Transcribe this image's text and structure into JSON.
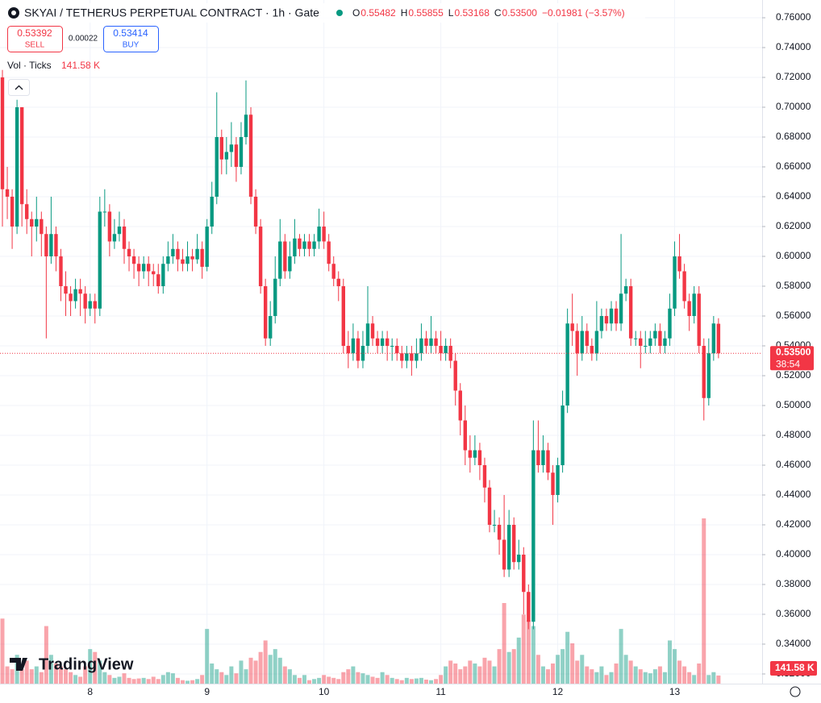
{
  "chart_data": {
    "type": "candlestick",
    "title": "SKYAI / TETHERUS PERPETUAL CONTRACT · 1h · Gate",
    "ohlc_legend": [
      {
        "key": "O",
        "value": "0.55482"
      },
      {
        "key": "H",
        "value": "0.55855"
      },
      {
        "key": "L",
        "value": "0.53168"
      },
      {
        "key": "C",
        "value": "0.53500"
      }
    ],
    "change": "−0.01981 (−3.57%)",
    "sell": {
      "price": "0.53392",
      "label": "SELL"
    },
    "spread": "0.00022",
    "buy": {
      "price": "0.53414",
      "label": "BUY"
    },
    "volume_legend": "Vol · Ticks",
    "volume_last_label": "141.58 K",
    "last_price_label": "0.53500",
    "countdown": "38:54",
    "watermark": "TradingView",
    "up_color": "#089981",
    "down_color": "#f23645",
    "grid": true,
    "ylim": [
      0.3135,
      0.7719
    ],
    "yticks": [
      {
        "value": 0.32,
        "label": "0.32000"
      },
      {
        "value": 0.34,
        "label": "0.34000"
      },
      {
        "value": 0.36,
        "label": "0.36000"
      },
      {
        "value": 0.38,
        "label": "0.38000"
      },
      {
        "value": 0.4,
        "label": "0.40000"
      },
      {
        "value": 0.42,
        "label": "0.42000"
      },
      {
        "value": 0.44,
        "label": "0.44000"
      },
      {
        "value": 0.46,
        "label": "0.46000"
      },
      {
        "value": 0.48,
        "label": "0.48000"
      },
      {
        "value": 0.5,
        "label": "0.50000"
      },
      {
        "value": 0.52,
        "label": "0.52000"
      },
      {
        "value": 0.54,
        "label": "0.54000"
      },
      {
        "value": 0.56,
        "label": "0.56000"
      },
      {
        "value": 0.58,
        "label": "0.58000"
      },
      {
        "value": 0.6,
        "label": "0.60000"
      },
      {
        "value": 0.62,
        "label": "0.62000"
      },
      {
        "value": 0.64,
        "label": "0.64000"
      },
      {
        "value": 0.66,
        "label": "0.66000"
      },
      {
        "value": 0.68,
        "label": "0.68000"
      },
      {
        "value": 0.7,
        "label": "0.70000"
      },
      {
        "value": 0.72,
        "label": "0.72000"
      },
      {
        "value": 0.74,
        "label": "0.74000"
      },
      {
        "value": 0.76,
        "label": "0.76000"
      }
    ],
    "categories": [
      null,
      null,
      null,
      null,
      null,
      null,
      null,
      null,
      null,
      null,
      null,
      null,
      null,
      null,
      null,
      null,
      null,
      null,
      "8",
      null,
      null,
      null,
      null,
      null,
      null,
      null,
      null,
      null,
      null,
      null,
      null,
      null,
      null,
      null,
      null,
      null,
      null,
      null,
      null,
      null,
      null,
      null,
      "9",
      null,
      null,
      null,
      null,
      null,
      null,
      null,
      null,
      null,
      null,
      null,
      null,
      null,
      null,
      null,
      null,
      null,
      null,
      null,
      null,
      null,
      null,
      null,
      "10",
      null,
      null,
      null,
      null,
      null,
      null,
      null,
      null,
      null,
      null,
      null,
      null,
      null,
      null,
      null,
      null,
      null,
      null,
      null,
      null,
      null,
      null,
      null,
      "11",
      null,
      null,
      null,
      null,
      null,
      null,
      null,
      null,
      null,
      null,
      null,
      null,
      null,
      null,
      null,
      null,
      null,
      null,
      null,
      null,
      null,
      null,
      null,
      "12",
      null,
      null,
      null,
      null,
      null,
      null,
      null,
      null,
      null,
      null,
      null,
      null,
      null,
      null,
      null,
      null,
      null,
      null,
      null,
      null,
      null,
      null,
      null,
      "13",
      null,
      null,
      null,
      null,
      null,
      null,
      null,
      null,
      null
    ],
    "open": [
      0.72,
      0.645,
      0.64,
      0.62,
      0.7,
      0.635,
      0.625,
      0.62,
      0.625,
      0.615,
      0.6,
      0.615,
      0.6,
      0.58,
      0.575,
      0.57,
      0.578,
      0.575,
      0.565,
      0.57,
      0.565,
      0.63,
      0.63,
      0.61,
      0.615,
      0.62,
      0.605,
      0.6,
      0.595,
      0.59,
      0.595,
      0.59,
      0.588,
      0.58,
      0.595,
      0.6,
      0.605,
      0.598,
      0.595,
      0.6,
      0.598,
      0.605,
      0.593,
      0.62,
      0.64,
      0.68,
      0.665,
      0.67,
      0.675,
      0.66,
      0.68,
      0.695,
      0.64,
      0.62,
      0.58,
      0.545,
      0.56,
      0.585,
      0.61,
      0.59,
      0.6,
      0.612,
      0.605,
      0.61,
      0.605,
      0.61,
      0.62,
      0.61,
      0.595,
      0.585,
      0.58,
      0.54,
      0.535,
      0.545,
      0.53,
      0.54,
      0.555,
      0.545,
      0.54,
      0.545,
      0.54,
      0.54,
      0.535,
      0.53,
      0.535,
      0.53,
      0.535,
      0.545,
      0.54,
      0.545,
      0.54,
      0.535,
      0.54,
      0.53,
      0.51,
      0.49,
      0.47,
      0.465,
      0.47,
      0.46,
      0.445,
      0.42,
      0.42,
      0.41,
      0.39,
      0.42,
      0.395,
      0.4,
      0.375,
      0.355,
      0.47,
      0.46,
      0.47,
      0.455,
      0.44,
      0.46,
      0.5,
      0.555,
      0.55,
      0.535,
      0.55,
      0.54,
      0.535,
      0.55,
      0.56,
      0.555,
      0.565,
      0.555,
      0.575,
      0.58,
      0.545,
      0.545,
      0.54,
      0.54,
      0.545,
      0.55,
      0.54,
      0.545,
      0.565,
      0.6,
      0.59,
      0.57,
      0.56,
      0.575,
      0.54,
      0.505,
      0.535,
      0.55482
    ],
    "high": [
      0.725,
      0.66,
      0.645,
      0.705,
      0.7,
      0.645,
      0.63,
      0.64,
      0.63,
      0.62,
      0.64,
      0.62,
      0.605,
      0.59,
      0.58,
      0.585,
      0.585,
      0.58,
      0.575,
      0.575,
      0.64,
      0.645,
      0.635,
      0.625,
      0.63,
      0.625,
      0.61,
      0.605,
      0.6,
      0.6,
      0.6,
      0.595,
      0.595,
      0.6,
      0.61,
      0.615,
      0.61,
      0.605,
      0.61,
      0.605,
      0.615,
      0.61,
      0.625,
      0.65,
      0.71,
      0.685,
      0.68,
      0.69,
      0.68,
      0.69,
      0.718,
      0.7,
      0.645,
      0.625,
      0.585,
      0.57,
      0.6,
      0.625,
      0.615,
      0.61,
      0.625,
      0.615,
      0.615,
      0.615,
      0.615,
      0.632,
      0.63,
      0.615,
      0.6,
      0.59,
      0.585,
      0.55,
      0.555,
      0.55,
      0.55,
      0.58,
      0.56,
      0.55,
      0.55,
      0.55,
      0.545,
      0.545,
      0.54,
      0.54,
      0.54,
      0.545,
      0.555,
      0.55,
      0.56,
      0.55,
      0.55,
      0.545,
      0.545,
      0.535,
      0.515,
      0.5,
      0.48,
      0.48,
      0.475,
      0.465,
      0.45,
      0.43,
      0.425,
      0.44,
      0.43,
      0.425,
      0.41,
      0.405,
      0.38,
      0.49,
      0.49,
      0.48,
      0.475,
      0.46,
      0.465,
      0.51,
      0.565,
      0.575,
      0.555,
      0.56,
      0.555,
      0.545,
      0.57,
      0.565,
      0.565,
      0.57,
      0.57,
      0.615,
      0.585,
      0.585,
      0.55,
      0.55,
      0.55,
      0.55,
      0.555,
      0.555,
      0.55,
      0.575,
      0.61,
      0.615,
      0.595,
      0.575,
      0.58,
      0.58,
      0.545,
      0.545,
      0.56,
      0.55855
    ],
    "low": [
      0.62,
      0.625,
      0.605,
      0.615,
      0.62,
      0.615,
      0.6,
      0.61,
      0.6,
      0.545,
      0.595,
      0.59,
      0.57,
      0.56,
      0.56,
      0.565,
      0.56,
      0.555,
      0.56,
      0.555,
      0.56,
      0.62,
      0.6,
      0.605,
      0.61,
      0.595,
      0.59,
      0.585,
      0.58,
      0.585,
      0.58,
      0.58,
      0.575,
      0.575,
      0.59,
      0.595,
      0.59,
      0.59,
      0.59,
      0.59,
      0.595,
      0.585,
      0.59,
      0.615,
      0.635,
      0.655,
      0.655,
      0.66,
      0.65,
      0.655,
      0.675,
      0.635,
      0.615,
      0.575,
      0.54,
      0.54,
      0.555,
      0.58,
      0.585,
      0.585,
      0.595,
      0.6,
      0.6,
      0.6,
      0.6,
      0.605,
      0.605,
      0.59,
      0.58,
      0.57,
      0.535,
      0.525,
      0.53,
      0.525,
      0.525,
      0.535,
      0.54,
      0.535,
      0.535,
      0.53,
      0.53,
      0.53,
      0.525,
      0.525,
      0.52,
      0.525,
      0.53,
      0.535,
      0.535,
      0.535,
      0.53,
      0.53,
      0.525,
      0.5,
      0.48,
      0.46,
      0.455,
      0.46,
      0.45,
      0.435,
      0.415,
      0.415,
      0.4,
      0.385,
      0.385,
      0.39,
      0.39,
      0.36,
      0.35,
      0.35,
      0.455,
      0.455,
      0.45,
      0.42,
      0.435,
      0.455,
      0.495,
      0.54,
      0.52,
      0.53,
      0.535,
      0.53,
      0.53,
      0.545,
      0.55,
      0.55,
      0.55,
      0.55,
      0.57,
      0.54,
      0.54,
      0.525,
      0.535,
      0.535,
      0.54,
      0.535,
      0.535,
      0.54,
      0.56,
      0.585,
      0.565,
      0.55,
      0.555,
      0.535,
      0.49,
      0.5,
      0.53,
      0.53168
    ],
    "close": [
      0.645,
      0.64,
      0.62,
      0.7,
      0.635,
      0.625,
      0.62,
      0.625,
      0.615,
      0.6,
      0.615,
      0.6,
      0.58,
      0.575,
      0.57,
      0.578,
      0.575,
      0.565,
      0.57,
      0.565,
      0.63,
      0.63,
      0.61,
      0.615,
      0.62,
      0.605,
      0.6,
      0.595,
      0.59,
      0.595,
      0.59,
      0.588,
      0.58,
      0.595,
      0.6,
      0.605,
      0.598,
      0.595,
      0.6,
      0.598,
      0.605,
      0.593,
      0.62,
      0.64,
      0.68,
      0.665,
      0.67,
      0.675,
      0.66,
      0.68,
      0.695,
      0.64,
      0.62,
      0.58,
      0.545,
      0.56,
      0.585,
      0.61,
      0.59,
      0.6,
      0.612,
      0.605,
      0.61,
      0.605,
      0.61,
      0.62,
      0.61,
      0.595,
      0.585,
      0.58,
      0.54,
      0.535,
      0.545,
      0.53,
      0.54,
      0.555,
      0.545,
      0.54,
      0.545,
      0.54,
      0.54,
      0.535,
      0.53,
      0.535,
      0.53,
      0.535,
      0.545,
      0.54,
      0.545,
      0.54,
      0.535,
      0.54,
      0.53,
      0.51,
      0.49,
      0.47,
      0.465,
      0.47,
      0.46,
      0.445,
      0.42,
      0.42,
      0.41,
      0.39,
      0.42,
      0.395,
      0.4,
      0.375,
      0.355,
      0.47,
      0.46,
      0.47,
      0.455,
      0.44,
      0.46,
      0.5,
      0.555,
      0.55,
      0.535,
      0.55,
      0.54,
      0.535,
      0.55,
      0.56,
      0.555,
      0.565,
      0.555,
      0.575,
      0.58,
      0.545,
      0.545,
      0.54,
      0.54,
      0.545,
      0.55,
      0.54,
      0.545,
      0.565,
      0.6,
      0.59,
      0.57,
      0.56,
      0.575,
      0.54,
      0.505,
      0.535,
      0.555,
      0.535
    ],
    "volume": [
      1130,
      300,
      250,
      500,
      250,
      400,
      250,
      300,
      200,
      1000,
      500,
      350,
      300,
      250,
      200,
      150,
      120,
      300,
      600,
      550,
      400,
      200,
      150,
      100,
      120,
      180,
      100,
      80,
      90,
      100,
      80,
      120,
      80,
      150,
      200,
      180,
      100,
      60,
      50,
      60,
      80,
      150,
      950,
      350,
      250,
      200,
      150,
      300,
      180,
      400,
      250,
      450,
      400,
      550,
      750,
      500,
      600,
      450,
      300,
      250,
      150,
      100,
      150,
      60,
      80,
      100,
      150,
      120,
      100,
      80,
      200,
      250,
      300,
      200,
      180,
      150,
      120,
      100,
      200,
      150,
      100,
      80,
      60,
      100,
      80,
      90,
      100,
      70,
      60,
      80,
      150,
      300,
      400,
      350,
      250,
      300,
      400,
      350,
      300,
      450,
      400,
      300,
      600,
      1400,
      550,
      600,
      800,
      1200,
      1100,
      1000,
      500,
      300,
      250,
      350,
      500,
      600,
      900,
      700,
      400,
      500,
      300,
      250,
      200,
      300,
      150,
      200,
      350,
      950,
      500,
      400,
      300,
      250,
      200,
      180,
      250,
      300,
      200,
      750,
      600,
      400,
      300,
      200,
      150,
      350,
      2870,
      150,
      200,
      141.58
    ]
  }
}
